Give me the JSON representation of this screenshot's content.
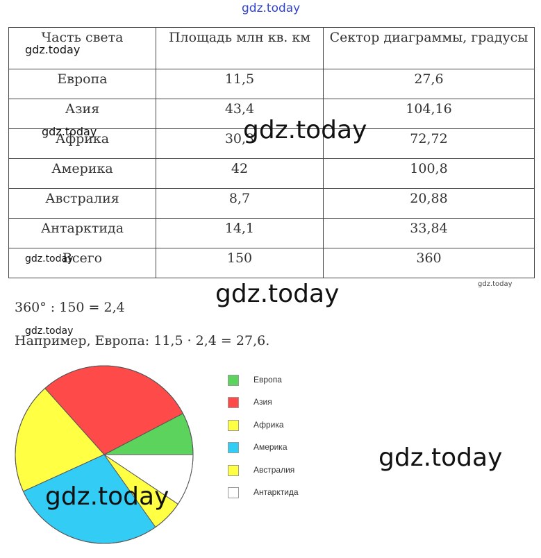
{
  "watermark": "gdz.today",
  "table": {
    "headers": [
      "Часть света",
      "Площадь млн кв. км",
      "Сектор диаграммы, градусы"
    ],
    "rows": [
      [
        "Европа",
        "11,5",
        "27,6"
      ],
      [
        "Азия",
        "43,4",
        "104,16"
      ],
      [
        "Африка",
        "30,3",
        "72,72"
      ],
      [
        "Америка",
        "42",
        "100,8"
      ],
      [
        "Австралия",
        "8,7",
        "20,88"
      ],
      [
        "Антарктида",
        "14,1",
        "33,84"
      ],
      [
        "Всего",
        "150",
        "360"
      ]
    ]
  },
  "calc": {
    "line1": "360° : 150 = 2,4",
    "line2": "Например, Европа: 11,5 · 2,4 = 27,6."
  },
  "chart_data": {
    "type": "pie",
    "categories": [
      "Европа",
      "Азия",
      "Африка",
      "Америка",
      "Австралия",
      "Антарктида"
    ],
    "values": [
      27.6,
      104.16,
      72.72,
      100.8,
      20.88,
      33.84
    ],
    "unit": "degrees",
    "colors": [
      "#5cd35c",
      "#ff4a4a",
      "#ffff44",
      "#33ccf5",
      "#ffff44",
      "#ffffff"
    ],
    "legend_position": "right"
  }
}
